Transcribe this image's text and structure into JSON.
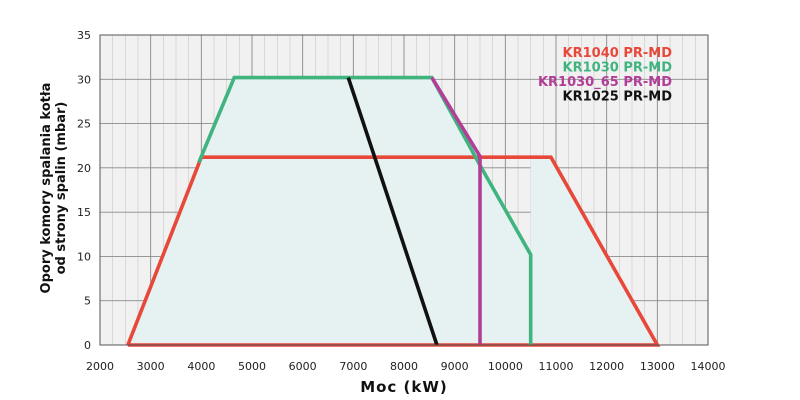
{
  "chart_data": {
    "type": "line",
    "title": "",
    "xlabel": "Moc (kW)",
    "ylabel_lines": [
      "Opory komory spalania kotła",
      "od strony spalin (mbar)"
    ],
    "xlim": [
      2000,
      14000
    ],
    "ylim": [
      0,
      35
    ],
    "x_ticks": [
      2000,
      3000,
      4000,
      5000,
      6000,
      7000,
      8000,
      9000,
      10000,
      11000,
      12000,
      13000,
      14000
    ],
    "y_ticks": [
      0,
      5,
      10,
      15,
      20,
      25,
      30,
      35
    ],
    "x_minor_step": 250,
    "grid": true,
    "legend_position": "top-right",
    "series": [
      {
        "name": "KR1040 PR-MD",
        "color": "#e8483a",
        "points": [
          [
            2550,
            0
          ],
          [
            4000,
            21.2
          ],
          [
            10900,
            21.2
          ],
          [
            13000,
            0
          ],
          [
            2550,
            0
          ]
        ]
      },
      {
        "name": "KR1030 PR-MD",
        "color": "#3fb47e",
        "points": [
          [
            3950,
            20.6
          ],
          [
            4650,
            30.2
          ],
          [
            8550,
            30.2
          ],
          [
            9500,
            20.3
          ],
          [
            10500,
            10.2
          ],
          [
            10500,
            0
          ]
        ]
      },
      {
        "name": "KR1030_65 PR-MD",
        "color": "#b23e98",
        "points": [
          [
            8550,
            30.2
          ],
          [
            9500,
            21.3
          ],
          [
            9500,
            0
          ]
        ]
      },
      {
        "name": "KR1025 PR-MD",
        "color": "#111111",
        "points": [
          [
            6900,
            30.2
          ],
          [
            8650,
            0
          ]
        ]
      }
    ]
  }
}
